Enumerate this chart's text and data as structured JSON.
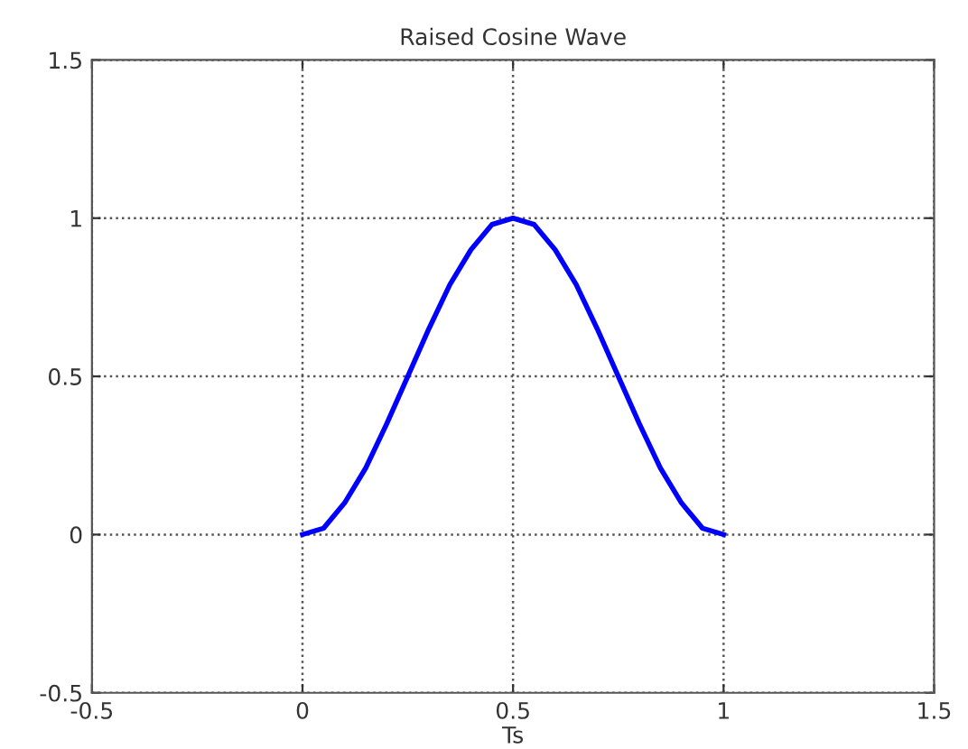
{
  "chart_data": {
    "type": "line",
    "title": "Raised Cosine Wave",
    "xlabel": "Ts",
    "x": [
      0,
      0.05,
      0.1,
      0.15,
      0.2,
      0.25,
      0.3,
      0.35,
      0.4,
      0.45,
      0.5,
      0.55,
      0.6,
      0.65,
      0.7,
      0.75,
      0.8,
      0.85,
      0.9,
      0.95,
      1
    ],
    "series": [
      {
        "color": "#0000ff",
        "values": [
          0,
          0.02,
          0.1,
          0.21,
          0.35,
          0.5,
          0.65,
          0.79,
          0.9,
          0.98,
          1,
          0.98,
          0.9,
          0.79,
          0.65,
          0.5,
          0.35,
          0.21,
          0.1,
          0.02,
          0
        ]
      }
    ],
    "xlim": [
      -0.5,
      1.5
    ],
    "ylim": [
      -0.5,
      1.5
    ],
    "xticks": [
      -0.5,
      0,
      0.5,
      1,
      1.5
    ],
    "yticks": [
      -0.5,
      0,
      0.5,
      1,
      1.5
    ],
    "grid": true,
    "line_style": "solid",
    "marker": "none"
  }
}
